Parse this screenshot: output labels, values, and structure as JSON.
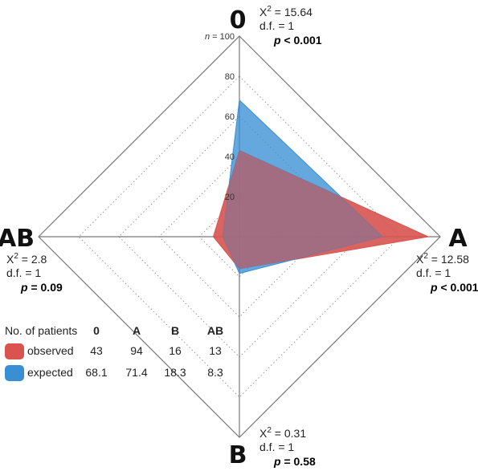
{
  "chart_data": {
    "type": "radar",
    "axes": [
      "0",
      "A",
      "B",
      "AB"
    ],
    "rlim": [
      0,
      100
    ],
    "r_ticks": [
      20,
      40,
      60,
      80,
      100
    ],
    "r_tick_labels": [
      "20",
      "40",
      "60",
      "80",
      "100"
    ],
    "r_max_prefix": "n =",
    "series": [
      {
        "name": "observed",
        "values": [
          43,
          94,
          16,
          13
        ],
        "color": "#d9534f"
      },
      {
        "name": "expected",
        "values": [
          68.1,
          71.4,
          18.3,
          8.3
        ],
        "color": "#3a8fd4"
      }
    ],
    "stats": [
      {
        "axis": "0",
        "chi_label": "Χ",
        "chi_sup": "2",
        "chi_value": "= 15.64",
        "df": "d.f. = 1",
        "p_label": "p",
        "p_value": "< 0.001"
      },
      {
        "axis": "A",
        "chi_label": "Χ",
        "chi_sup": "2",
        "chi_value": "= 12.58",
        "df": "d.f. = 1",
        "p_label": "p",
        "p_value": "< 0.001"
      },
      {
        "axis": "B",
        "chi_label": "Χ",
        "chi_sup": "2",
        "chi_value": "= 0.31",
        "df": "d.f. = 1",
        "p_label": "p",
        "p_value": "= 0.58"
      },
      {
        "axis": "AB",
        "chi_label": "Χ",
        "chi_sup": "2",
        "chi_value": "= 2.8",
        "df": "d.f. = 1",
        "p_label": "p",
        "p_value": "= 0.09"
      }
    ],
    "legend": {
      "header": "No. of patients",
      "columns": [
        "0",
        "A",
        "B",
        "AB"
      ],
      "rows": [
        {
          "label": "observed",
          "cells": [
            "43",
            "94",
            "16",
            "13"
          ],
          "color": "#d9534f"
        },
        {
          "label": "expected",
          "cells": [
            "68.1",
            "71.4",
            "18.3",
            "8.3"
          ],
          "color": "#3a8fd4"
        }
      ],
      "placement": "bottom-left"
    }
  }
}
